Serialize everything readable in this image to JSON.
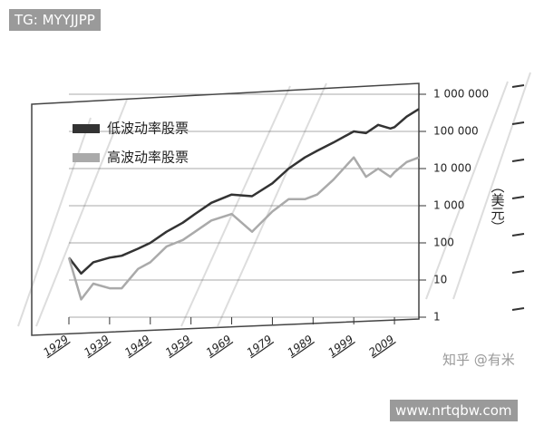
{
  "chart_data": {
    "type": "line",
    "x": [
      1929,
      1932,
      1935,
      1939,
      1942,
      1946,
      1949,
      1953,
      1957,
      1960,
      1964,
      1969,
      1974,
      1979,
      1983,
      1987,
      1990,
      1994,
      1999,
      2002,
      2005,
      2008,
      2009,
      2012,
      2015
    ],
    "series": [
      {
        "name": "低波动率股票",
        "color": "#333333",
        "values": [
          40,
          15,
          30,
          40,
          45,
          70,
          100,
          200,
          350,
          600,
          1200,
          2000,
          1800,
          4000,
          10000,
          20000,
          30000,
          50000,
          100000,
          90000,
          150000,
          120000,
          130000,
          250000,
          400000
        ]
      },
      {
        "name": "高波动率股票",
        "color": "#aaaaaa",
        "values": [
          40,
          3,
          8,
          6,
          6,
          20,
          30,
          80,
          120,
          200,
          400,
          600,
          200,
          700,
          1500,
          1500,
          2000,
          5000,
          20000,
          6000,
          10000,
          6000,
          8000,
          15000,
          20000
        ]
      }
    ],
    "xlim": [
      1929,
      2015
    ],
    "xticks": [
      1929,
      1939,
      1949,
      1959,
      1969,
      1979,
      1989,
      1999,
      2009
    ],
    "ylim": [
      1,
      1000000
    ],
    "yticks": [
      1,
      10,
      100,
      {
        "value": 1000,
        "label": "1 000"
      },
      {
        "value": 10000,
        "label": "10 000"
      },
      {
        "value": 100000,
        "label": "100 000"
      },
      {
        "value": 1000000,
        "label": "1 000 000"
      }
    ],
    "y_label": "（美元）",
    "log_scale_y": true,
    "grid": true,
    "legend": "top-left"
  },
  "watermarks": [
    "TG: MYYJJPP",
    "知乎 @有米",
    "www.nrtqbw.com"
  ]
}
